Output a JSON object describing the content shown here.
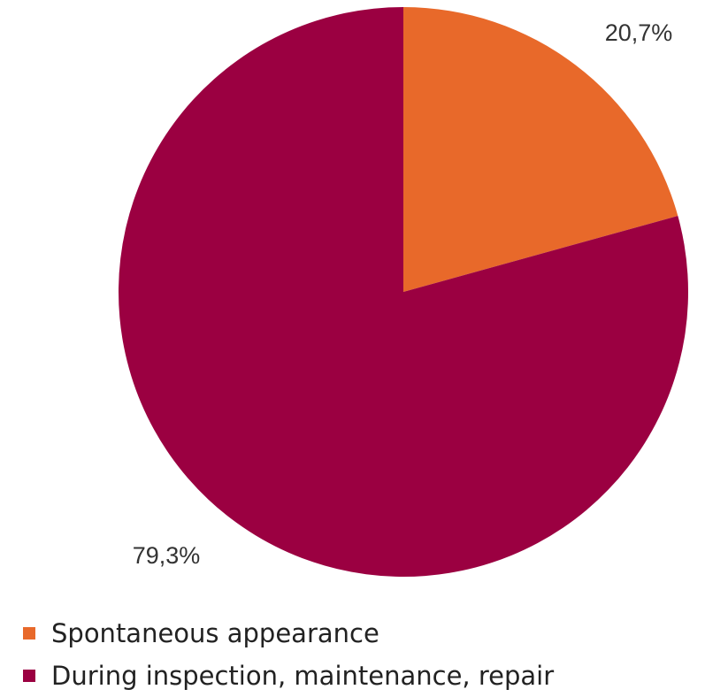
{
  "chart_data": {
    "type": "pie",
    "title": "",
    "start_angle_deg": 0,
    "direction": "clockwise",
    "slices": [
      {
        "label": "Spontaneous appearance",
        "value": 20.7,
        "display": "20,7%",
        "color": "#E8692A"
      },
      {
        "label": "During inspection, maintenance, repair",
        "value": 79.3,
        "display": "79,3%",
        "color": "#9B0041"
      }
    ],
    "legend": {
      "position": "bottom-left",
      "entries": [
        "Spontaneous appearance",
        "During inspection, maintenance, repair"
      ]
    }
  }
}
